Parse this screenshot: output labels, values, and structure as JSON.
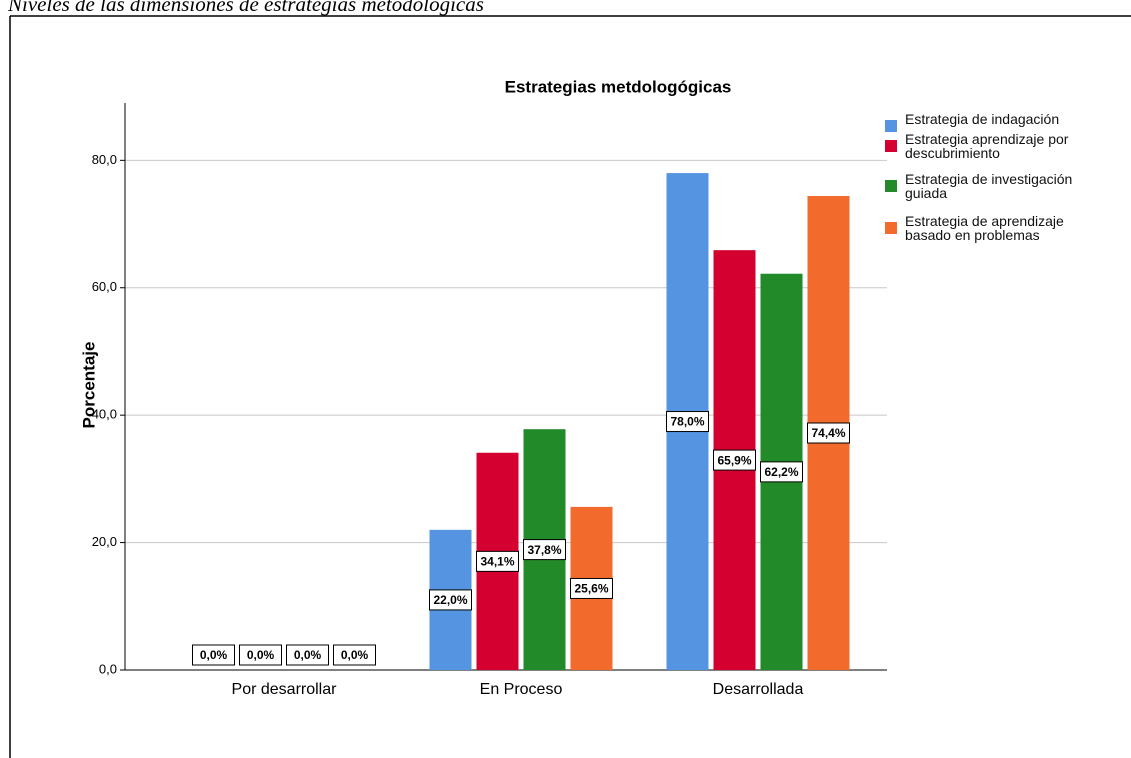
{
  "caption": "Niveles de las dimensiones de estrategias metodológicas",
  "chart_data": {
    "type": "bar",
    "title": "Estrategias metdologógicas",
    "y_label": "Porcentaje",
    "categories": [
      "Por desarrollar",
      "En Proceso",
      "Desarrollada"
    ],
    "series": [
      {
        "name": "Estrategia de indagación",
        "color": "#5594e0",
        "values": [
          0,
          22.0,
          78.0
        ],
        "value_labels": [
          "0,0%",
          "22,0%",
          "78,0%"
        ]
      },
      {
        "name": "Estrategia aprendizaje por descubrimiento",
        "color": "#d4002f",
        "values": [
          0,
          34.1,
          65.9
        ],
        "value_labels": [
          "0,0%",
          "34,1%",
          "65,9%"
        ]
      },
      {
        "name": "Estrategia de investigación guiada",
        "color": "#238a2a",
        "values": [
          0,
          37.8,
          62.2
        ],
        "value_labels": [
          "0,0%",
          "37,8%",
          "62,2%"
        ]
      },
      {
        "name": "Estrategia de aprendizaje basado en problemas",
        "color": "#f26a2c",
        "values": [
          0,
          25.6,
          74.4
        ],
        "value_labels": [
          "0,0%",
          "25,6%",
          "74,4%"
        ]
      }
    ],
    "ylim": [
      0,
      89
    ],
    "yticks": [
      {
        "value": 0,
        "label": "0,0"
      },
      {
        "value": 20,
        "label": "20,0"
      },
      {
        "value": 40,
        "label": "40,0"
      },
      {
        "value": 60,
        "label": "60,0"
      },
      {
        "value": 80,
        "label": "80,0"
      }
    ],
    "grid": true,
    "legend": "right"
  }
}
